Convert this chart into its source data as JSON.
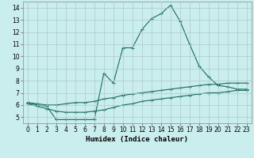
{
  "title": "",
  "xlabel": "Humidex (Indice chaleur)",
  "bg_color": "#caeeed",
  "grid_color": "#b0c8c8",
  "line_color": "#1a6b5a",
  "xlim": [
    -0.5,
    23.5
  ],
  "ylim": [
    4.5,
    14.5
  ],
  "yticks": [
    5,
    6,
    7,
    8,
    9,
    10,
    11,
    12,
    13,
    14
  ],
  "xticks": [
    0,
    1,
    2,
    3,
    4,
    5,
    6,
    7,
    8,
    9,
    10,
    11,
    12,
    13,
    14,
    15,
    16,
    17,
    18,
    19,
    20,
    21,
    22,
    23
  ],
  "series1_x": [
    0,
    1,
    2,
    3,
    4,
    5,
    6,
    7,
    8,
    9,
    10,
    11,
    12,
    13,
    14,
    15,
    16,
    17,
    18,
    19,
    20,
    21,
    22,
    23
  ],
  "series1_y": [
    6.2,
    6.0,
    5.9,
    4.8,
    4.8,
    4.8,
    4.8,
    4.8,
    8.6,
    7.8,
    10.7,
    10.7,
    12.2,
    13.1,
    13.5,
    14.2,
    12.9,
    11.0,
    9.2,
    8.3,
    7.6,
    7.5,
    7.3,
    7.3
  ],
  "series2_x": [
    0,
    1,
    2,
    3,
    4,
    5,
    6,
    7,
    8,
    9,
    10,
    11,
    12,
    13,
    14,
    15,
    16,
    17,
    18,
    19,
    20,
    21,
    22,
    23
  ],
  "series2_y": [
    6.2,
    6.1,
    6.0,
    6.0,
    6.1,
    6.2,
    6.2,
    6.3,
    6.5,
    6.6,
    6.8,
    6.9,
    7.0,
    7.1,
    7.2,
    7.3,
    7.4,
    7.5,
    7.6,
    7.7,
    7.7,
    7.8,
    7.8,
    7.8
  ],
  "series3_x": [
    0,
    1,
    2,
    3,
    4,
    5,
    6,
    7,
    8,
    9,
    10,
    11,
    12,
    13,
    14,
    15,
    16,
    17,
    18,
    19,
    20,
    21,
    22,
    23
  ],
  "series3_y": [
    6.1,
    5.9,
    5.7,
    5.5,
    5.4,
    5.4,
    5.4,
    5.5,
    5.6,
    5.8,
    6.0,
    6.1,
    6.3,
    6.4,
    6.5,
    6.6,
    6.7,
    6.8,
    6.9,
    7.0,
    7.0,
    7.1,
    7.2,
    7.2
  ],
  "xlabel_fontsize": 6.5,
  "tick_fontsize": 5.5
}
